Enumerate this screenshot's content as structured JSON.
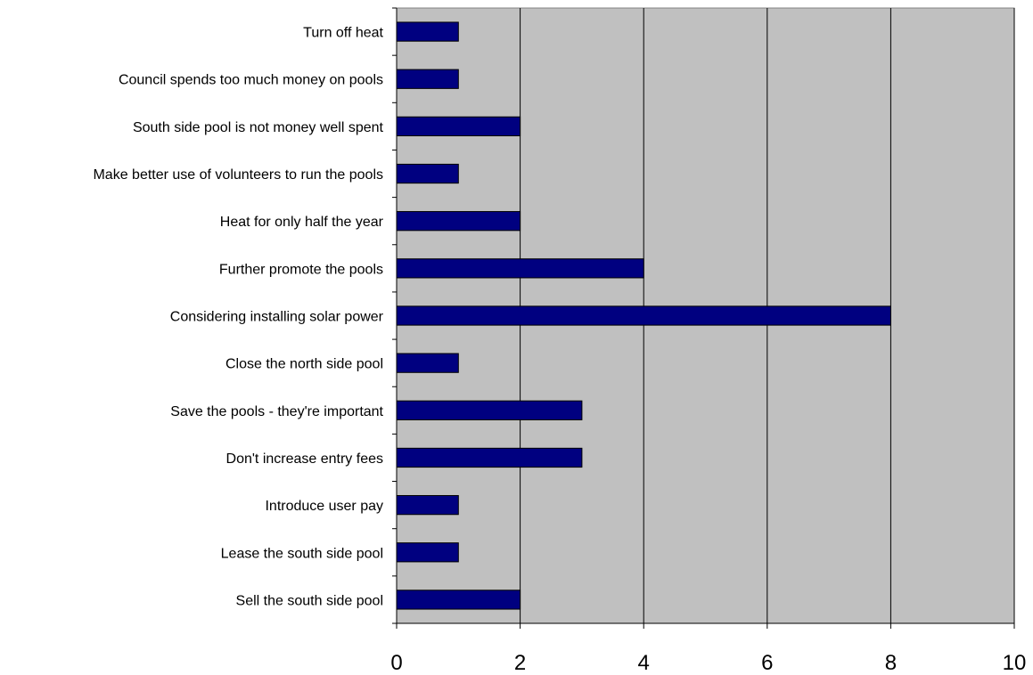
{
  "chart_data": {
    "type": "bar",
    "orientation": "horizontal",
    "categories": [
      "Turn off heat",
      "Council spends too much money on pools",
      "South side pool is not money well spent",
      "Make better use of volunteers to run the pools",
      "Heat for only half the year",
      "Further promote the pools",
      "Considering installing solar power ",
      "Close the north side pool",
      "Save the pools - they're important",
      "Don't increase entry fees",
      "Introduce user pay",
      "Lease the south side pool",
      "Sell the south side pool"
    ],
    "values": [
      1,
      1,
      2,
      1,
      2,
      4,
      8,
      1,
      3,
      3,
      1,
      1,
      2
    ],
    "xlim": [
      0,
      10
    ],
    "xticks": [
      "0",
      "2",
      "4",
      "6",
      "8",
      "10"
    ],
    "grid": "vertical",
    "legend": "none",
    "title": "",
    "xlabel": "",
    "ylabel": "",
    "colors": {
      "bar": "#000080",
      "plot_background": "#c0c0c0",
      "gridline": "#000000"
    }
  }
}
